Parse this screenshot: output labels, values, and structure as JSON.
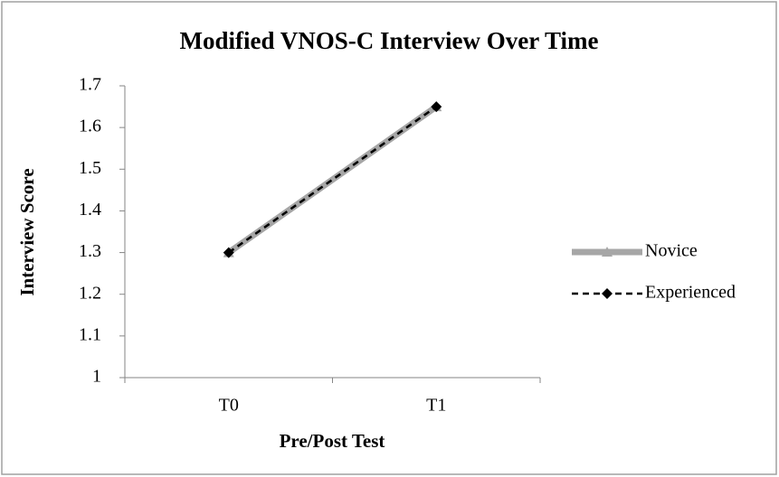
{
  "chart_data": {
    "type": "line",
    "title": "Modified VNOS-C Interview Over Time",
    "xlabel": "Pre/Post Test",
    "ylabel": "Interview Score",
    "categories": [
      "T0",
      "T1"
    ],
    "series": [
      {
        "name": "Novice",
        "color": "#a6a6a6",
        "values": [
          1.3,
          1.65
        ],
        "marker": "triangle",
        "dashed": false
      },
      {
        "name": "Experienced",
        "color": "#000000",
        "values": [
          1.3,
          1.65
        ],
        "marker": "diamond",
        "dashed": true
      }
    ],
    "ylim": [
      1,
      1.7
    ],
    "yticks": [
      1,
      1.1,
      1.2,
      1.3,
      1.4,
      1.5,
      1.6,
      1.7
    ],
    "grid": false,
    "legend": "right"
  }
}
